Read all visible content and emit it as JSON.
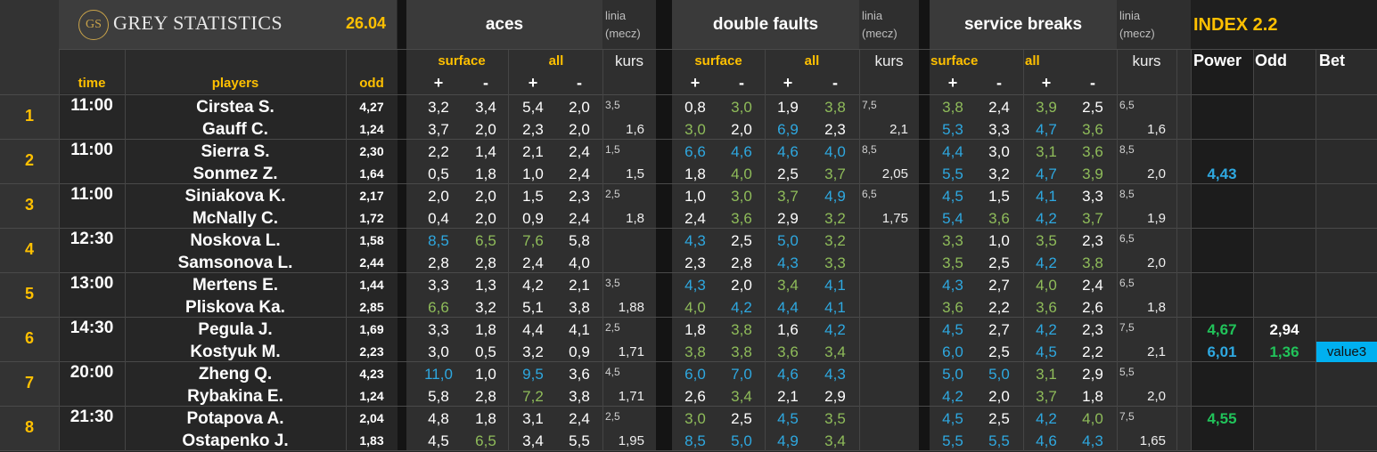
{
  "header": {
    "logo_letters": "GS",
    "brand": "GREY STATISTICS",
    "date": "26.04",
    "groups": [
      {
        "title": "aces",
        "sub_left": "surface",
        "sub_right": "all"
      },
      {
        "title": "double faults",
        "sub_left": "surface",
        "sub_right": "all"
      },
      {
        "title": "service breaks",
        "sub_left": "surface",
        "sub_right": "all"
      }
    ],
    "linia_line1": "linia",
    "linia_line2": "(mecz)",
    "kurs": "kurs",
    "plus": "+",
    "minus": "-",
    "index_title": "INDEX 2.2",
    "power": "Power",
    "odd": "Odd",
    "bet": "Bet",
    "col_time": "time",
    "col_players": "players",
    "col_odd": "odd"
  },
  "colors": {
    "gold": "#ffc000",
    "green": "#8fbc5a",
    "blue": "#2ea8e0",
    "bright_green": "#21c35a",
    "value_bg": "#00b0f0"
  },
  "matches": [
    {
      "num": "1",
      "time": "11:00",
      "p": [
        {
          "name": "Cirstea S.",
          "odd": "4,27",
          "aces": [
            [
              "3,2",
              "w"
            ],
            [
              "3,4",
              "w"
            ],
            [
              "5,4",
              "w"
            ],
            [
              "2,0",
              "w"
            ]
          ],
          "df": [
            [
              "0,8",
              "w"
            ],
            [
              "3,0",
              "g"
            ],
            [
              "1,9",
              "w"
            ],
            [
              "3,8",
              "g"
            ]
          ],
          "sb": [
            [
              "3,8",
              "g"
            ],
            [
              "2,4",
              "w"
            ],
            [
              "3,9",
              "g"
            ],
            [
              "2,5",
              "w"
            ]
          ]
        },
        {
          "name": "Gauff C.",
          "odd": "1,24",
          "aces": [
            [
              "3,7",
              "w"
            ],
            [
              "2,0",
              "w"
            ],
            [
              "2,3",
              "w"
            ],
            [
              "2,0",
              "w"
            ]
          ],
          "df": [
            [
              "3,0",
              "g"
            ],
            [
              "2,0",
              "w"
            ],
            [
              "6,9",
              "b"
            ],
            [
              "2,3",
              "w"
            ]
          ],
          "sb": [
            [
              "5,3",
              "b"
            ],
            [
              "3,3",
              "w"
            ],
            [
              "4,7",
              "b"
            ],
            [
              "3,6",
              "g"
            ]
          ]
        }
      ],
      "aces_linia": "3,5",
      "aces_kurs": "1,6",
      "df_linia": "7,5",
      "df_kurs": "2,1",
      "sb_linia": "6,5",
      "sb_kurs": "1,6",
      "power": [
        "",
        ""
      ],
      "odd": [
        "",
        ""
      ],
      "bet": [
        "",
        ""
      ]
    },
    {
      "num": "2",
      "time": "11:00",
      "p": [
        {
          "name": "Sierra S.",
          "odd": "2,30",
          "aces": [
            [
              "2,2",
              "w"
            ],
            [
              "1,4",
              "w"
            ],
            [
              "2,1",
              "w"
            ],
            [
              "2,4",
              "w"
            ]
          ],
          "df": [
            [
              "6,6",
              "b"
            ],
            [
              "4,6",
              "b"
            ],
            [
              "4,6",
              "b"
            ],
            [
              "4,0",
              "b"
            ]
          ],
          "sb": [
            [
              "4,4",
              "b"
            ],
            [
              "3,0",
              "w"
            ],
            [
              "3,1",
              "g"
            ],
            [
              "3,6",
              "g"
            ]
          ]
        },
        {
          "name": "Sonmez Z.",
          "odd": "1,64",
          "aces": [
            [
              "0,5",
              "w"
            ],
            [
              "1,8",
              "w"
            ],
            [
              "1,0",
              "w"
            ],
            [
              "2,4",
              "w"
            ]
          ],
          "df": [
            [
              "1,8",
              "w"
            ],
            [
              "4,0",
              "g"
            ],
            [
              "2,5",
              "w"
            ],
            [
              "3,7",
              "g"
            ]
          ],
          "sb": [
            [
              "5,5",
              "b"
            ],
            [
              "3,2",
              "w"
            ],
            [
              "4,7",
              "b"
            ],
            [
              "3,9",
              "g"
            ]
          ]
        }
      ],
      "aces_linia": "1,5",
      "aces_kurs": "1,5",
      "df_linia": "8,5",
      "df_kurs": "2,05",
      "sb_linia": "8,5",
      "sb_kurs": "2,0",
      "power": [
        "",
        "4,43"
      ],
      "odd": [
        "",
        ""
      ],
      "bet": [
        "",
        ""
      ]
    },
    {
      "num": "3",
      "time": "11:00",
      "p": [
        {
          "name": "Siniakova K.",
          "odd": "2,17",
          "aces": [
            [
              "2,0",
              "w"
            ],
            [
              "2,0",
              "w"
            ],
            [
              "1,5",
              "w"
            ],
            [
              "2,3",
              "w"
            ]
          ],
          "df": [
            [
              "1,0",
              "w"
            ],
            [
              "3,0",
              "g"
            ],
            [
              "3,7",
              "g"
            ],
            [
              "4,9",
              "b"
            ]
          ],
          "sb": [
            [
              "4,5",
              "b"
            ],
            [
              "1,5",
              "w"
            ],
            [
              "4,1",
              "b"
            ],
            [
              "3,3",
              "w"
            ]
          ]
        },
        {
          "name": "McNally C.",
          "odd": "1,72",
          "aces": [
            [
              "0,4",
              "w"
            ],
            [
              "2,0",
              "w"
            ],
            [
              "0,9",
              "w"
            ],
            [
              "2,4",
              "w"
            ]
          ],
          "df": [
            [
              "2,4",
              "w"
            ],
            [
              "3,6",
              "g"
            ],
            [
              "2,9",
              "w"
            ],
            [
              "3,2",
              "g"
            ]
          ],
          "sb": [
            [
              "5,4",
              "b"
            ],
            [
              "3,6",
              "g"
            ],
            [
              "4,2",
              "b"
            ],
            [
              "3,7",
              "g"
            ]
          ]
        }
      ],
      "aces_linia": "2,5",
      "aces_kurs": "1,8",
      "df_linia": "6,5",
      "df_kurs": "1,75",
      "sb_linia": "8,5",
      "sb_kurs": "1,9",
      "power": [
        "",
        ""
      ],
      "odd": [
        "",
        ""
      ],
      "bet": [
        "",
        ""
      ]
    },
    {
      "num": "4",
      "time": "12:30",
      "p": [
        {
          "name": "Noskova L.",
          "odd": "1,58",
          "aces": [
            [
              "8,5",
              "b"
            ],
            [
              "6,5",
              "g"
            ],
            [
              "7,6",
              "g"
            ],
            [
              "5,8",
              "w"
            ]
          ],
          "df": [
            [
              "4,3",
              "b"
            ],
            [
              "2,5",
              "w"
            ],
            [
              "5,0",
              "b"
            ],
            [
              "3,2",
              "g"
            ]
          ],
          "sb": [
            [
              "3,3",
              "g"
            ],
            [
              "1,0",
              "w"
            ],
            [
              "3,5",
              "g"
            ],
            [
              "2,3",
              "w"
            ]
          ]
        },
        {
          "name": "Samsonova L.",
          "odd": "2,44",
          "aces": [
            [
              "2,8",
              "w"
            ],
            [
              "2,8",
              "w"
            ],
            [
              "2,4",
              "w"
            ],
            [
              "4,0",
              "w"
            ]
          ],
          "df": [
            [
              "2,3",
              "w"
            ],
            [
              "2,8",
              "w"
            ],
            [
              "4,3",
              "b"
            ],
            [
              "3,3",
              "g"
            ]
          ],
          "sb": [
            [
              "3,5",
              "g"
            ],
            [
              "2,5",
              "w"
            ],
            [
              "4,2",
              "b"
            ],
            [
              "3,8",
              "g"
            ]
          ]
        }
      ],
      "aces_linia": "",
      "aces_kurs": "",
      "df_linia": "",
      "df_kurs": "",
      "sb_linia": "6,5",
      "sb_kurs": "2,0",
      "power": [
        "",
        ""
      ],
      "odd": [
        "",
        ""
      ],
      "bet": [
        "",
        ""
      ]
    },
    {
      "num": "5",
      "time": "13:00",
      "p": [
        {
          "name": "Mertens E.",
          "odd": "1,44",
          "aces": [
            [
              "3,3",
              "w"
            ],
            [
              "1,3",
              "w"
            ],
            [
              "4,2",
              "w"
            ],
            [
              "2,1",
              "w"
            ]
          ],
          "df": [
            [
              "4,3",
              "b"
            ],
            [
              "2,0",
              "w"
            ],
            [
              "3,4",
              "g"
            ],
            [
              "4,1",
              "b"
            ]
          ],
          "sb": [
            [
              "4,3",
              "b"
            ],
            [
              "2,7",
              "w"
            ],
            [
              "4,0",
              "g"
            ],
            [
              "2,4",
              "w"
            ]
          ]
        },
        {
          "name": "Pliskova Ka.",
          "odd": "2,85",
          "aces": [
            [
              "6,6",
              "g"
            ],
            [
              "3,2",
              "w"
            ],
            [
              "5,1",
              "w"
            ],
            [
              "3,8",
              "w"
            ]
          ],
          "df": [
            [
              "4,0",
              "g"
            ],
            [
              "4,2",
              "b"
            ],
            [
              "4,4",
              "b"
            ],
            [
              "4,1",
              "b"
            ]
          ],
          "sb": [
            [
              "3,6",
              "g"
            ],
            [
              "2,2",
              "w"
            ],
            [
              "3,6",
              "g"
            ],
            [
              "2,6",
              "w"
            ]
          ]
        }
      ],
      "aces_linia": "3,5",
      "aces_kurs": "1,88",
      "df_linia": "",
      "df_kurs": "",
      "sb_linia": "6,5",
      "sb_kurs": "1,8",
      "power": [
        "",
        ""
      ],
      "odd": [
        "",
        ""
      ],
      "bet": [
        "",
        ""
      ]
    },
    {
      "num": "6",
      "time": "14:30",
      "p": [
        {
          "name": "Pegula J.",
          "odd": "1,69",
          "aces": [
            [
              "3,3",
              "w"
            ],
            [
              "1,8",
              "w"
            ],
            [
              "4,4",
              "w"
            ],
            [
              "4,1",
              "w"
            ]
          ],
          "df": [
            [
              "1,8",
              "w"
            ],
            [
              "3,8",
              "g"
            ],
            [
              "1,6",
              "w"
            ],
            [
              "4,2",
              "b"
            ]
          ],
          "sb": [
            [
              "4,5",
              "b"
            ],
            [
              "2,7",
              "w"
            ],
            [
              "4,2",
              "b"
            ],
            [
              "2,3",
              "w"
            ]
          ]
        },
        {
          "name": "Kostyuk M.",
          "odd": "2,23",
          "aces": [
            [
              "3,0",
              "w"
            ],
            [
              "0,5",
              "w"
            ],
            [
              "3,2",
              "w"
            ],
            [
              "0,9",
              "w"
            ]
          ],
          "df": [
            [
              "3,8",
              "g"
            ],
            [
              "3,8",
              "g"
            ],
            [
              "3,6",
              "g"
            ],
            [
              "3,4",
              "g"
            ]
          ],
          "sb": [
            [
              "6,0",
              "b"
            ],
            [
              "2,5",
              "w"
            ],
            [
              "4,5",
              "b"
            ],
            [
              "2,2",
              "w"
            ]
          ]
        }
      ],
      "aces_linia": "2,5",
      "aces_kurs": "1,71",
      "df_linia": "",
      "df_kurs": "",
      "sb_linia": "7,5",
      "sb_kurs": "2,1",
      "power": [
        "4,67",
        "6,01"
      ],
      "odd": [
        "2,94",
        "1,36"
      ],
      "bet": [
        "",
        "value3"
      ]
    },
    {
      "num": "7",
      "time": "20:00",
      "p": [
        {
          "name": "Zheng Q.",
          "odd": "4,23",
          "aces": [
            [
              "11,0",
              "b"
            ],
            [
              "1,0",
              "w"
            ],
            [
              "9,5",
              "b"
            ],
            [
              "3,6",
              "w"
            ]
          ],
          "df": [
            [
              "6,0",
              "b"
            ],
            [
              "7,0",
              "b"
            ],
            [
              "4,6",
              "b"
            ],
            [
              "4,3",
              "b"
            ]
          ],
          "sb": [
            [
              "5,0",
              "b"
            ],
            [
              "5,0",
              "b"
            ],
            [
              "3,1",
              "g"
            ],
            [
              "2,9",
              "w"
            ]
          ]
        },
        {
          "name": "Rybakina E.",
          "odd": "1,24",
          "aces": [
            [
              "5,8",
              "w"
            ],
            [
              "2,8",
              "w"
            ],
            [
              "7,2",
              "g"
            ],
            [
              "3,8",
              "w"
            ]
          ],
          "df": [
            [
              "2,6",
              "w"
            ],
            [
              "3,4",
              "g"
            ],
            [
              "2,1",
              "w"
            ],
            [
              "2,9",
              "w"
            ]
          ],
          "sb": [
            [
              "4,2",
              "b"
            ],
            [
              "2,0",
              "w"
            ],
            [
              "3,7",
              "g"
            ],
            [
              "1,8",
              "w"
            ]
          ]
        }
      ],
      "aces_linia": "4,5",
      "aces_kurs": "1,71",
      "df_linia": "",
      "df_kurs": "",
      "sb_linia": "5,5",
      "sb_kurs": "2,0",
      "power": [
        "",
        ""
      ],
      "odd": [
        "",
        ""
      ],
      "bet": [
        "",
        ""
      ]
    },
    {
      "num": "8",
      "time": "21:30",
      "p": [
        {
          "name": "Potapova A.",
          "odd": "2,04",
          "aces": [
            [
              "4,8",
              "w"
            ],
            [
              "1,8",
              "w"
            ],
            [
              "3,1",
              "w"
            ],
            [
              "2,4",
              "w"
            ]
          ],
          "df": [
            [
              "3,0",
              "g"
            ],
            [
              "2,5",
              "w"
            ],
            [
              "4,5",
              "b"
            ],
            [
              "3,5",
              "g"
            ]
          ],
          "sb": [
            [
              "4,5",
              "b"
            ],
            [
              "2,5",
              "w"
            ],
            [
              "4,2",
              "b"
            ],
            [
              "4,0",
              "g"
            ]
          ]
        },
        {
          "name": "Ostapenko J.",
          "odd": "1,83",
          "aces": [
            [
              "4,5",
              "w"
            ],
            [
              "6,5",
              "g"
            ],
            [
              "3,4",
              "w"
            ],
            [
              "5,5",
              "w"
            ]
          ],
          "df": [
            [
              "8,5",
              "b"
            ],
            [
              "5,0",
              "b"
            ],
            [
              "4,9",
              "b"
            ],
            [
              "3,4",
              "g"
            ]
          ],
          "sb": [
            [
              "5,5",
              "b"
            ],
            [
              "5,5",
              "b"
            ],
            [
              "4,6",
              "b"
            ],
            [
              "4,3",
              "b"
            ]
          ]
        }
      ],
      "aces_linia": "2,5",
      "aces_kurs": "1,95",
      "df_linia": "",
      "df_kurs": "",
      "sb_linia": "7,5",
      "sb_kurs": "1,65",
      "power": [
        "4,55",
        ""
      ],
      "odd": [
        "",
        ""
      ],
      "bet": [
        "",
        ""
      ]
    }
  ]
}
